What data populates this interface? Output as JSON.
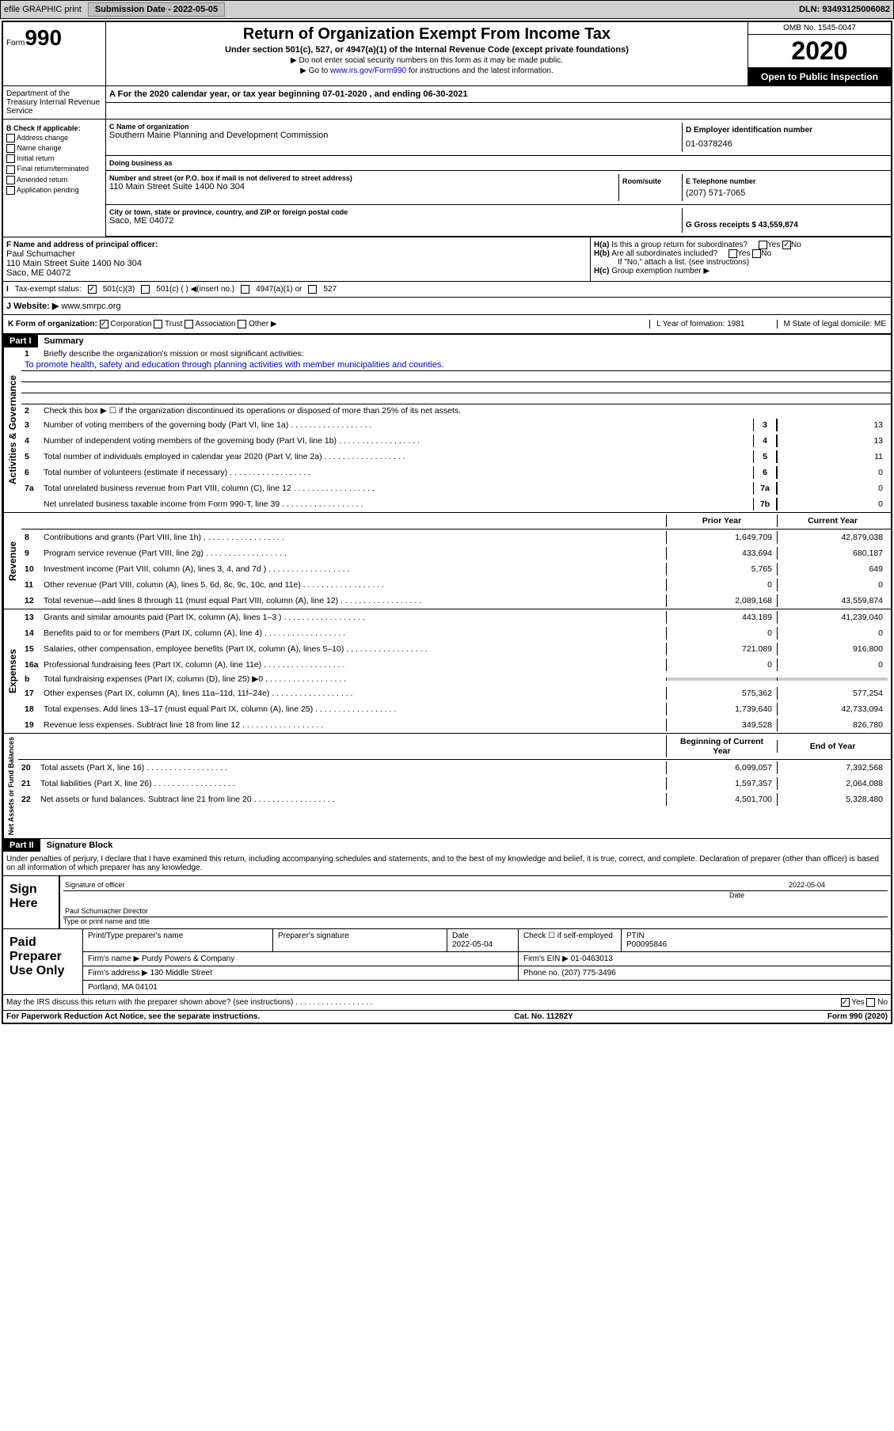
{
  "topbar": {
    "efile_label": "efile GRAPHIC print",
    "submission_label": "Submission Date - 2022-05-05",
    "dln_label": "DLN: 93493125006082"
  },
  "header": {
    "form_label": "Form",
    "form_num": "990",
    "title": "Return of Organization Exempt From Income Tax",
    "subtitle": "Under section 501(c), 527, or 4947(a)(1) of the Internal Revenue Code (except private foundations)",
    "instr1": "Do not enter social security numbers on this form as it may be made public.",
    "instr2_pre": "Go to ",
    "instr2_link": "www.irs.gov/Form990",
    "instr2_post": " for instructions and the latest information.",
    "omb": "OMB No. 1545-0047",
    "year": "2020",
    "inspect": "Open to Public Inspection",
    "dept": "Department of the Treasury Internal Revenue Service"
  },
  "line_a": {
    "text": "For the 2020 calendar year, or tax year beginning 07-01-2020    , and ending 06-30-2021"
  },
  "section_b": {
    "header": "B Check if applicable:",
    "items": [
      "Address change",
      "Name change",
      "Initial return",
      "Final return/terminated",
      "Amended return",
      "Application pending"
    ]
  },
  "section_c": {
    "label": "C Name of organization",
    "name": "Southern Maine Planning and Development Commission",
    "dba_label": "Doing business as",
    "addr_label": "Number and street (or P.O. box if mail is not delivered to street address)",
    "room_label": "Room/suite",
    "addr": "110 Main Street Suite 1400 No 304",
    "city_label": "City or town, state or province, country, and ZIP or foreign postal code",
    "city": "Saco, ME  04072"
  },
  "section_d": {
    "label": "D Employer identification number",
    "ein": "01-0378246"
  },
  "section_e": {
    "label": "E Telephone number",
    "phone": "(207) 571-7065"
  },
  "section_g": {
    "label": "G Gross receipts $ 43,559,874"
  },
  "section_f": {
    "label": "F  Name and address of principal officer:",
    "name": "Paul Schumacher",
    "addr": "110 Main Street Suite 1400 No 304",
    "city": "Saco, ME  04072"
  },
  "section_h": {
    "ha": "Is this a group return for subordinates?",
    "hb": "Are all subordinates included?",
    "hb_note": "If \"No,\" attach a list. (see instructions)",
    "hc": "Group exemption number ▶"
  },
  "section_i": {
    "label": "Tax-exempt status:",
    "opts": [
      "501(c)(3)",
      "501(c) (  ) ◀(insert no.)",
      "4947(a)(1) or",
      "527"
    ]
  },
  "section_j": {
    "label": "J    Website: ▶",
    "url": "www.smrpc.org"
  },
  "section_k": {
    "label": "K Form of organization:",
    "opts": [
      "Corporation",
      "Trust",
      "Association",
      "Other ▶"
    ],
    "l_label": "L Year of formation: 1981",
    "m_label": "M State of legal domicile: ME"
  },
  "part1": {
    "label": "Part I",
    "title": "Summary",
    "q1": "Briefly describe the organization's mission or most significant activities:",
    "mission": "To promote health, safety and education through planning activities with member municipalities and counties.",
    "q2": "Check this box ▶ ☐  if the organization discontinued its operations or disposed of more than 25% of its net assets.",
    "lines_gov": [
      {
        "n": "3",
        "t": "Number of voting members of the governing body (Part VI, line 1a)",
        "box": "3",
        "v": "13"
      },
      {
        "n": "4",
        "t": "Number of independent voting members of the governing body (Part VI, line 1b)",
        "box": "4",
        "v": "13"
      },
      {
        "n": "5",
        "t": "Total number of individuals employed in calendar year 2020 (Part V, line 2a)",
        "box": "5",
        "v": "11"
      },
      {
        "n": "6",
        "t": "Total number of volunteers (estimate if necessary)",
        "box": "6",
        "v": "0"
      },
      {
        "n": "7a",
        "t": "Total unrelated business revenue from Part VIII, column (C), line 12",
        "box": "7a",
        "v": "0"
      },
      {
        "n": "",
        "t": "Net unrelated business taxable income from Form 990-T, line 39",
        "box": "7b",
        "v": "0"
      }
    ],
    "col_prior": "Prior Year",
    "col_current": "Current Year",
    "lines_rev": [
      {
        "n": "8",
        "t": "Contributions and grants (Part VIII, line 1h)",
        "p": "1,649,709",
        "c": "42,879,038"
      },
      {
        "n": "9",
        "t": "Program service revenue (Part VIII, line 2g)",
        "p": "433,694",
        "c": "680,187"
      },
      {
        "n": "10",
        "t": "Investment income (Part VIII, column (A), lines 3, 4, and 7d )",
        "p": "5,765",
        "c": "649"
      },
      {
        "n": "11",
        "t": "Other revenue (Part VIII, column (A), lines 5, 6d, 8c, 9c, 10c, and 11e)",
        "p": "0",
        "c": "0"
      },
      {
        "n": "12",
        "t": "Total revenue—add lines 8 through 11 (must equal Part VIII, column (A), line 12)",
        "p": "2,089,168",
        "c": "43,559,874"
      }
    ],
    "lines_exp": [
      {
        "n": "13",
        "t": "Grants and similar amounts paid (Part IX, column (A), lines 1–3 )",
        "p": "443,189",
        "c": "41,239,040"
      },
      {
        "n": "14",
        "t": "Benefits paid to or for members (Part IX, column (A), line 4)",
        "p": "0",
        "c": "0"
      },
      {
        "n": "15",
        "t": "Salaries, other compensation, employee benefits (Part IX, column (A), lines 5–10)",
        "p": "721,089",
        "c": "916,800"
      },
      {
        "n": "16a",
        "t": "Professional fundraising fees (Part IX, column (A), line 11e)",
        "p": "0",
        "c": "0"
      },
      {
        "n": "b",
        "t": "Total fundraising expenses (Part IX, column (D), line 25) ▶0",
        "p": "",
        "c": "",
        "gray": true
      },
      {
        "n": "17",
        "t": "Other expenses (Part IX, column (A), lines 11a–11d, 11f–24e)",
        "p": "575,362",
        "c": "577,254"
      },
      {
        "n": "18",
        "t": "Total expenses. Add lines 13–17 (must equal Part IX, column (A), line 25)",
        "p": "1,739,640",
        "c": "42,733,094"
      },
      {
        "n": "19",
        "t": "Revenue less expenses. Subtract line 18 from line 12",
        "p": "349,528",
        "c": "826,780"
      }
    ],
    "col_begin": "Beginning of Current Year",
    "col_end": "End of Year",
    "lines_net": [
      {
        "n": "20",
        "t": "Total assets (Part X, line 16)",
        "p": "6,099,057",
        "c": "7,392,568"
      },
      {
        "n": "21",
        "t": "Total liabilities (Part X, line 26)",
        "p": "1,597,357",
        "c": "2,064,088"
      },
      {
        "n": "22",
        "t": "Net assets or fund balances. Subtract line 21 from line 20",
        "p": "4,501,700",
        "c": "5,328,480"
      }
    ],
    "vlabel_gov": "Activities & Governance",
    "vlabel_rev": "Revenue",
    "vlabel_exp": "Expenses",
    "vlabel_net": "Net Assets or Fund Balances"
  },
  "part2": {
    "label": "Part II",
    "title": "Signature Block",
    "decl": "Under penalties of perjury, I declare that I have examined this return, including accompanying schedules and statements, and to the best of my knowledge and belief, it is true, correct, and complete. Declaration of preparer (other than officer) is based on all information of which preparer has any knowledge.",
    "sign_here": "Sign Here",
    "sig_officer": "Signature of officer",
    "date": "Date",
    "date_val": "2022-05-04",
    "name_title": "Paul Schumacher  Director",
    "type_name": "Type or print name and title",
    "paid_prep": "Paid Preparer Use Only",
    "prep_name_h": "Print/Type preparer's name",
    "prep_sig_h": "Preparer's signature",
    "prep_date_h": "Date",
    "prep_date": "2022-05-04",
    "check_self": "Check ☐ if self-employed",
    "ptin_h": "PTIN",
    "ptin": "P00095846",
    "firm_name_h": "Firm's name    ▶",
    "firm_name": "Purdy Powers & Company",
    "firm_ein_h": "Firm's EIN ▶",
    "firm_ein": "01-0463013",
    "firm_addr_h": "Firm's address ▶",
    "firm_addr": "130 Middle Street",
    "firm_city": "Portland, MA  04101",
    "phone_h": "Phone no.",
    "phone": "(207) 775-3496",
    "discuss": "May the IRS discuss this return with the preparer shown above? (see instructions)"
  },
  "footer": {
    "pra": "For Paperwork Reduction Act Notice, see the separate instructions.",
    "cat": "Cat. No. 11282Y",
    "form": "Form 990 (2020)"
  }
}
